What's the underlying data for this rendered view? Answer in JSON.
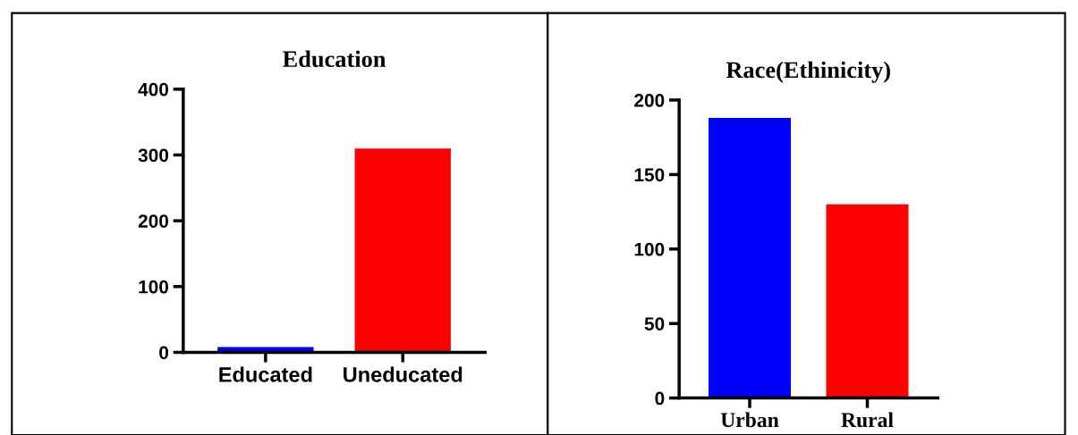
{
  "chart_data": [
    {
      "type": "bar",
      "title": "Education",
      "categories": [
        "Educated",
        "Uneducated"
      ],
      "values": [
        8,
        310
      ],
      "colors": [
        "#0000ff",
        "#ff0000"
      ],
      "ylim": [
        0,
        400
      ],
      "yticks": [
        0,
        100,
        200,
        300,
        400
      ],
      "grid": false
    },
    {
      "type": "bar",
      "title": "Race(Ethinicity)",
      "categories": [
        "Urban",
        "Rural"
      ],
      "values": [
        188,
        130
      ],
      "colors": [
        "#0000ff",
        "#ff0000"
      ],
      "ylim": [
        0,
        200
      ],
      "yticks": [
        0,
        50,
        100,
        150,
        200
      ],
      "grid": false
    }
  ]
}
